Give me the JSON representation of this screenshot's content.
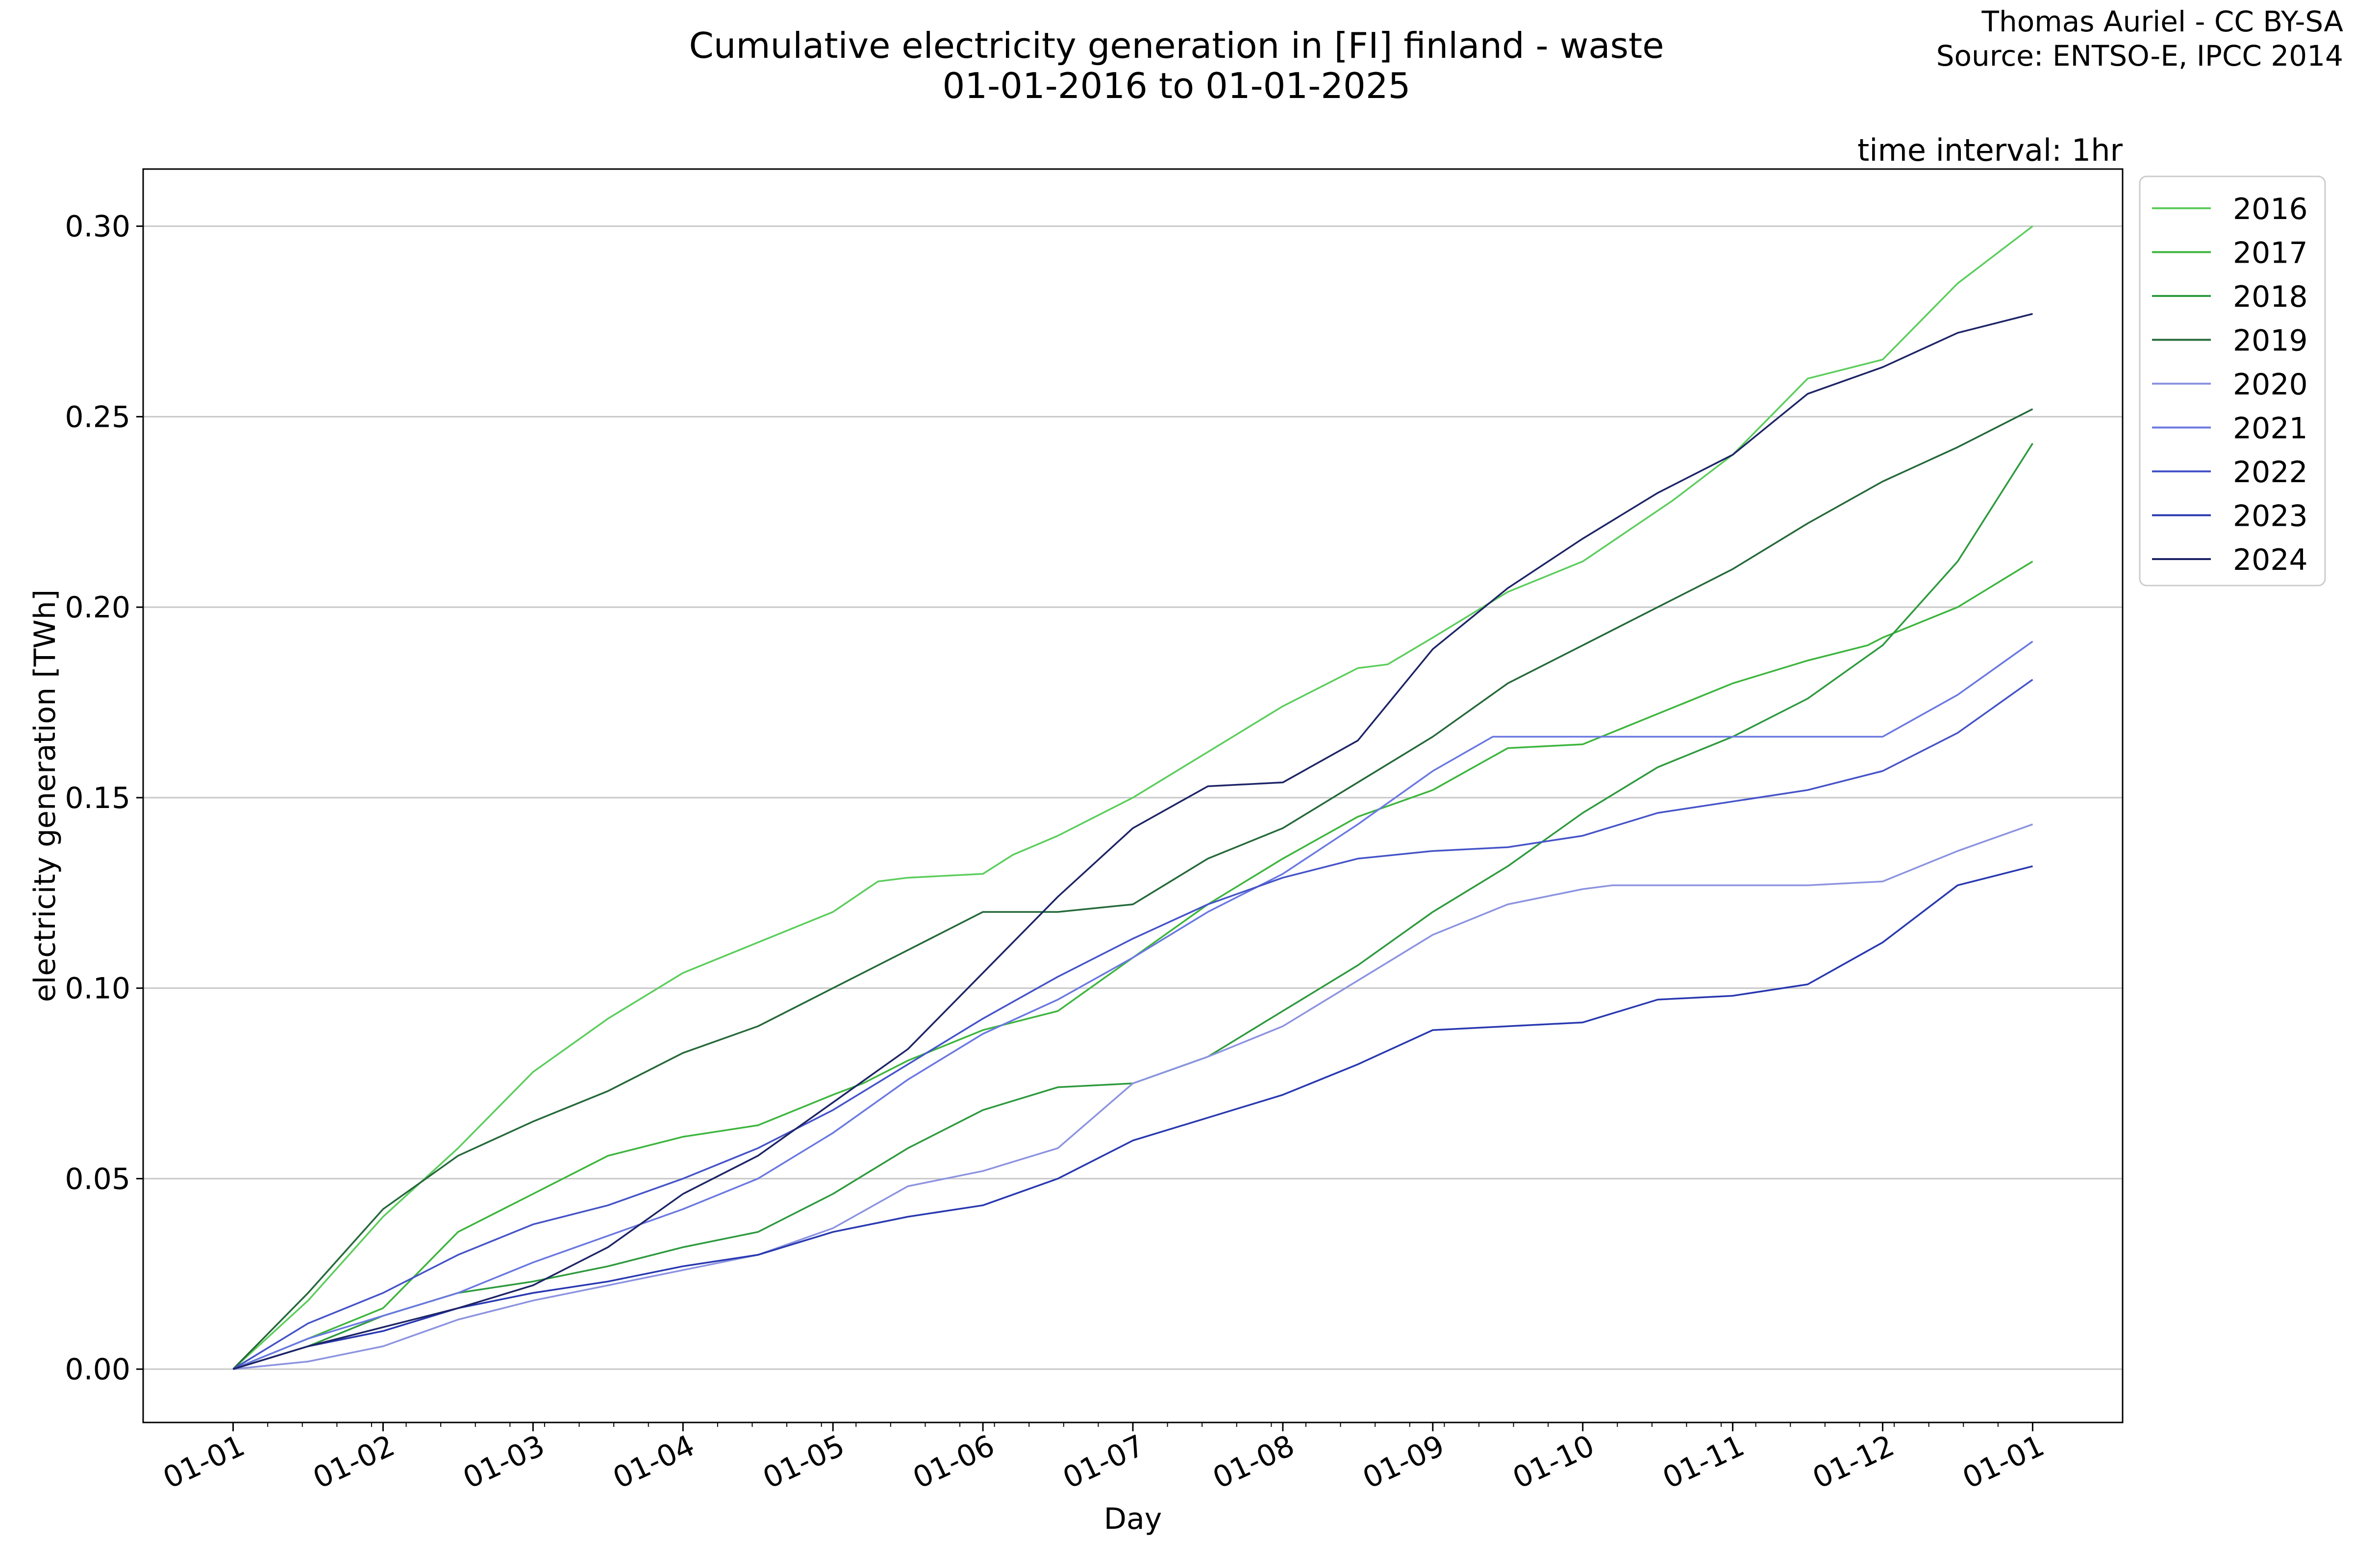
{
  "chart_data": {
    "type": "line",
    "title": "Cumulative electricity generation in [FI] finland - waste",
    "subtitle": "01-01-2016 to 01-01-2025",
    "credit_lines": [
      "Thomas Auriel - CC BY-SA",
      "Source: ENTSO-E, IPCC 2014"
    ],
    "annotation": "time interval: 1hr",
    "xlabel": "Day",
    "ylabel": "electricity generation [TWh]",
    "x_ticks": [
      "01-01",
      "01-02",
      "01-03",
      "01-04",
      "01-05",
      "01-06",
      "01-07",
      "01-08",
      "01-09",
      "01-10",
      "01-11",
      "01-12",
      "01-01"
    ],
    "y_ticks": [
      "0.00",
      "0.05",
      "0.10",
      "0.15",
      "0.20",
      "0.25",
      "0.30"
    ],
    "ylim": [
      -0.014,
      0.315
    ],
    "xlim": [
      -0.6,
      12.6
    ],
    "grid": "horizontal",
    "legend_position": "outside-right-top",
    "x_unit": "month (0 = 01-01)",
    "series": [
      {
        "name": "2016",
        "color": "#5ccd5c",
        "x": [
          0,
          0.5,
          1,
          1.5,
          2,
          2.5,
          3,
          3.5,
          4,
          4.3,
          4.5,
          5,
          5.2,
          5.5,
          6,
          6.5,
          7,
          7.5,
          7.7,
          8,
          8.5,
          9,
          9.3,
          9.6,
          10,
          10.5,
          11,
          11.5,
          12
        ],
        "y": [
          0,
          0.018,
          0.04,
          0.058,
          0.078,
          0.092,
          0.104,
          0.112,
          0.12,
          0.128,
          0.129,
          0.13,
          0.135,
          0.14,
          0.15,
          0.162,
          0.174,
          0.184,
          0.185,
          0.192,
          0.204,
          0.212,
          0.22,
          0.228,
          0.24,
          0.26,
          0.265,
          0.285,
          0.3
        ]
      },
      {
        "name": "2017",
        "color": "#3db53d",
        "x": [
          0,
          0.5,
          1,
          1.5,
          2,
          2.5,
          3,
          3.5,
          4,
          4.2,
          4.5,
          5,
          5.5,
          6,
          6.5,
          7,
          7.5,
          8,
          8.5,
          9,
          9.5,
          10,
          10.5,
          10.9,
          11,
          11.5,
          12
        ],
        "y": [
          0,
          0.008,
          0.016,
          0.036,
          0.046,
          0.056,
          0.061,
          0.064,
          0.072,
          0.075,
          0.081,
          0.089,
          0.094,
          0.108,
          0.122,
          0.134,
          0.145,
          0.152,
          0.163,
          0.164,
          0.172,
          0.18,
          0.186,
          0.19,
          0.192,
          0.2,
          0.212
        ]
      },
      {
        "name": "2018",
        "color": "#2e9a3e",
        "x": [
          0,
          0.5,
          1,
          1.5,
          2,
          2.5,
          3,
          3.5,
          4,
          4.5,
          5,
          5.5,
          6,
          6.5,
          7,
          7.5,
          8,
          8.5,
          9,
          9.5,
          10,
          10.5,
          11,
          11.5,
          12
        ],
        "y": [
          0,
          0.006,
          0.014,
          0.02,
          0.023,
          0.027,
          0.032,
          0.036,
          0.046,
          0.058,
          0.068,
          0.074,
          0.075,
          0.082,
          0.094,
          0.106,
          0.12,
          0.132,
          0.146,
          0.158,
          0.166,
          0.176,
          0.19,
          0.212,
          0.243
        ]
      },
      {
        "name": "2019",
        "color": "#25693a",
        "x": [
          0,
          0.5,
          1,
          1.5,
          2,
          2.5,
          3,
          3.5,
          4,
          4.5,
          5,
          5.5,
          6,
          6.5,
          7,
          7.5,
          8,
          8.5,
          9,
          9.5,
          10,
          10.5,
          11,
          11.5,
          12
        ],
        "y": [
          0,
          0.02,
          0.042,
          0.056,
          0.065,
          0.073,
          0.083,
          0.09,
          0.1,
          0.11,
          0.12,
          0.12,
          0.122,
          0.134,
          0.142,
          0.154,
          0.166,
          0.18,
          0.19,
          0.2,
          0.21,
          0.222,
          0.233,
          0.242,
          0.252
        ]
      },
      {
        "name": "2020",
        "color": "#8c93e0",
        "x": [
          0,
          0.5,
          1,
          1.5,
          2,
          2.5,
          3,
          3.5,
          4,
          4.5,
          5,
          5.5,
          6,
          6.5,
          7,
          7.5,
          8,
          8.5,
          9,
          9.2,
          9.5,
          10,
          10.5,
          11,
          11.5,
          12
        ],
        "y": [
          0,
          0.002,
          0.006,
          0.013,
          0.018,
          0.022,
          0.026,
          0.03,
          0.037,
          0.048,
          0.052,
          0.058,
          0.075,
          0.082,
          0.09,
          0.102,
          0.114,
          0.122,
          0.126,
          0.127,
          0.127,
          0.127,
          0.127,
          0.128,
          0.136,
          0.143
        ]
      },
      {
        "name": "2021",
        "color": "#6a78e0",
        "x": [
          0,
          0.5,
          1,
          1.5,
          2,
          2.5,
          3,
          3.5,
          4,
          4.5,
          5,
          5.5,
          6,
          6.5,
          7,
          7.5,
          8,
          8.4,
          8.7,
          9,
          9.5,
          10,
          10.5,
          11,
          11.5,
          12
        ],
        "y": [
          0,
          0.008,
          0.014,
          0.02,
          0.028,
          0.035,
          0.042,
          0.05,
          0.062,
          0.076,
          0.088,
          0.097,
          0.108,
          0.12,
          0.13,
          0.143,
          0.157,
          0.166,
          0.166,
          0.166,
          0.166,
          0.166,
          0.166,
          0.166,
          0.177,
          0.191
        ]
      },
      {
        "name": "2022",
        "color": "#4553c8",
        "x": [
          0,
          0.5,
          1,
          1.5,
          2,
          2.5,
          3,
          3.5,
          4,
          4.5,
          5,
          5.5,
          6,
          6.5,
          7,
          7.5,
          8,
          8.5,
          9,
          9.5,
          10,
          10.5,
          11,
          11.5,
          12
        ],
        "y": [
          0,
          0.012,
          0.02,
          0.03,
          0.038,
          0.043,
          0.05,
          0.058,
          0.068,
          0.08,
          0.092,
          0.103,
          0.113,
          0.122,
          0.129,
          0.134,
          0.136,
          0.137,
          0.14,
          0.146,
          0.149,
          0.152,
          0.157,
          0.167,
          0.181
        ]
      },
      {
        "name": "2023",
        "color": "#2838b0",
        "x": [
          0,
          0.5,
          1,
          1.5,
          2,
          2.5,
          3,
          3.5,
          4,
          4.5,
          5,
          5.5,
          6,
          6.5,
          7,
          7.5,
          8,
          8.5,
          9,
          9.5,
          10,
          10.5,
          11,
          11.5,
          12
        ],
        "y": [
          0,
          0.006,
          0.01,
          0.016,
          0.02,
          0.023,
          0.027,
          0.03,
          0.036,
          0.04,
          0.043,
          0.05,
          0.06,
          0.066,
          0.072,
          0.08,
          0.089,
          0.09,
          0.091,
          0.097,
          0.098,
          0.101,
          0.112,
          0.127,
          0.132
        ]
      },
      {
        "name": "2024",
        "color": "#1d2466",
        "x": [
          0,
          0.5,
          1,
          1.5,
          2,
          2.5,
          3,
          3.5,
          4,
          4.5,
          5,
          5.5,
          6,
          6.5,
          7,
          7.5,
          8,
          8.5,
          9,
          9.5,
          10,
          10.5,
          11,
          11.5,
          12
        ],
        "y": [
          0,
          0.006,
          0.011,
          0.016,
          0.022,
          0.032,
          0.046,
          0.056,
          0.07,
          0.084,
          0.104,
          0.124,
          0.142,
          0.153,
          0.154,
          0.165,
          0.189,
          0.205,
          0.218,
          0.23,
          0.24,
          0.256,
          0.263,
          0.272,
          0.277
        ]
      }
    ]
  }
}
